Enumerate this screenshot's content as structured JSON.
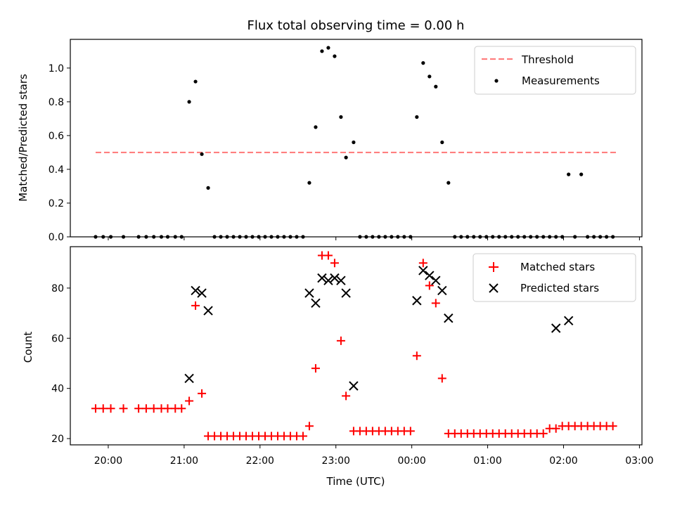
{
  "chart_data": [
    {
      "type": "scatter",
      "title": "Flux total observing time = 0.00 h",
      "xlabel": "",
      "ylabel": "Matched/Predicted stars",
      "x_tick_labels": [
        "20:00",
        "21:00",
        "22:00",
        "23:00",
        "00:00",
        "01:00",
        "02:00",
        "03:00"
      ],
      "x_tick_labels_visible": false,
      "y_ticks": [
        0.0,
        0.2,
        0.4,
        0.6,
        0.8,
        1.0
      ],
      "y_tick_labels": [
        "0.0",
        "0.2",
        "0.4",
        "0.6",
        "0.8",
        "1.0"
      ],
      "ylim": [
        0,
        1.17
      ],
      "legend_position": "upper right",
      "threshold": {
        "name": "Threshold",
        "value": 0.5,
        "x_start": "19:50",
        "x_end": "02:42",
        "color": "#ff7f7f",
        "style": "dashed"
      },
      "series": [
        {
          "name": "Measurements",
          "marker": "dot",
          "color": "#000000",
          "x": [
            "19:50",
            "19:56",
            "20:02",
            "20:12",
            "20:24",
            "20:30",
            "20:36",
            "20:42",
            "20:47",
            "20:53",
            "20:58",
            "21:04",
            "21:09",
            "21:14",
            "21:19",
            "21:24",
            "21:29",
            "21:34",
            "21:39",
            "21:44",
            "21:49",
            "21:54",
            "21:59",
            "22:04",
            "22:09",
            "22:14",
            "22:19",
            "22:24",
            "22:29",
            "22:34",
            "22:39",
            "22:44",
            "22:49",
            "22:54",
            "22:59",
            "23:04",
            "23:08",
            "23:14",
            "23:19",
            "23:24",
            "23:29",
            "23:34",
            "23:39",
            "23:44",
            "23:49",
            "23:54",
            "23:59",
            "00:04",
            "00:09",
            "00:14",
            "00:19",
            "00:24",
            "00:29",
            "00:34",
            "00:39",
            "00:44",
            "00:49",
            "00:54",
            "00:59",
            "01:04",
            "01:09",
            "01:14",
            "01:19",
            "01:24",
            "01:29",
            "01:34",
            "01:39",
            "01:44",
            "01:49",
            "01:54",
            "01:59",
            "02:04",
            "02:09",
            "02:14",
            "02:19",
            "02:24",
            "02:29",
            "02:34",
            "02:39"
          ],
          "y": [
            0,
            0,
            0,
            0,
            0,
            0,
            0,
            0,
            0,
            0,
            0,
            0.8,
            0.92,
            0.49,
            0.29,
            0,
            0,
            0,
            0,
            0,
            0,
            0,
            0,
            0,
            0,
            0,
            0,
            0,
            0,
            0,
            0.32,
            0.65,
            1.1,
            1.12,
            1.07,
            0.71,
            0.47,
            0.56,
            0,
            0,
            0,
            0,
            0,
            0,
            0,
            0,
            0,
            0.71,
            1.03,
            0.95,
            0.89,
            0.56,
            0.32,
            0,
            0,
            0,
            0,
            0,
            0,
            0,
            0,
            0,
            0,
            0,
            0,
            0,
            0,
            0,
            0,
            0,
            0,
            0.37,
            0,
            0.37,
            0,
            0,
            0,
            0,
            0
          ]
        }
      ]
    },
    {
      "type": "scatter",
      "title": "",
      "xlabel": "Time (UTC)",
      "ylabel": "Count",
      "x_tick_labels": [
        "20:00",
        "21:00",
        "22:00",
        "23:00",
        "00:00",
        "01:00",
        "02:00",
        "03:00"
      ],
      "y_ticks": [
        20,
        40,
        60,
        80
      ],
      "y_tick_labels": [
        "20",
        "40",
        "60",
        "80"
      ],
      "ylim": [
        17.5,
        96.5
      ],
      "legend_position": "upper right",
      "series": [
        {
          "name": "Matched stars",
          "marker": "plus",
          "color": "#ff0000",
          "x": [
            "19:50",
            "19:56",
            "20:02",
            "20:12",
            "20:24",
            "20:30",
            "20:36",
            "20:42",
            "20:47",
            "20:53",
            "20:58",
            "21:04",
            "21:09",
            "21:14",
            "21:19",
            "21:24",
            "21:29",
            "21:34",
            "21:39",
            "21:44",
            "21:49",
            "21:54",
            "21:59",
            "22:04",
            "22:09",
            "22:14",
            "22:19",
            "22:24",
            "22:29",
            "22:34",
            "22:39",
            "22:44",
            "22:49",
            "22:54",
            "22:59",
            "23:04",
            "23:08",
            "23:14",
            "23:19",
            "23:24",
            "23:29",
            "23:34",
            "23:39",
            "23:44",
            "23:49",
            "23:54",
            "23:59",
            "00:04",
            "00:09",
            "00:14",
            "00:19",
            "00:24",
            "00:29",
            "00:34",
            "00:39",
            "00:44",
            "00:49",
            "00:54",
            "00:59",
            "01:04",
            "01:09",
            "01:14",
            "01:19",
            "01:24",
            "01:29",
            "01:34",
            "01:39",
            "01:44",
            "01:49",
            "01:54",
            "01:59",
            "02:04",
            "02:09",
            "02:14",
            "02:19",
            "02:24",
            "02:29",
            "02:34",
            "02:39"
          ],
          "y": [
            32,
            32,
            32,
            32,
            32,
            32,
            32,
            32,
            32,
            32,
            32,
            35,
            73,
            38,
            21,
            21,
            21,
            21,
            21,
            21,
            21,
            21,
            21,
            21,
            21,
            21,
            21,
            21,
            21,
            21,
            25,
            48,
            93,
            93,
            90,
            59,
            37,
            23,
            23,
            23,
            23,
            23,
            23,
            23,
            23,
            23,
            23,
            53,
            90,
            81,
            74,
            44,
            22,
            22,
            22,
            22,
            22,
            22,
            22,
            22,
            22,
            22,
            22,
            22,
            22,
            22,
            22,
            22,
            24,
            24,
            25,
            25,
            25,
            25,
            25,
            25,
            25,
            25,
            25
          ]
        },
        {
          "name": "Predicted stars",
          "marker": "x",
          "color": "#000000",
          "x": [
            "21:04",
            "21:09",
            "21:14",
            "21:19",
            "22:39",
            "22:44",
            "22:49",
            "22:54",
            "22:59",
            "23:04",
            "23:08",
            "23:14",
            "00:04",
            "00:09",
            "00:14",
            "00:19",
            "00:24",
            "00:29",
            "01:54",
            "02:04"
          ],
          "y": [
            44,
            79,
            78,
            71,
            78,
            74,
            84,
            83,
            84,
            83,
            78,
            41,
            75,
            87,
            85,
            83,
            79,
            68,
            64,
            67
          ]
        }
      ]
    }
  ]
}
